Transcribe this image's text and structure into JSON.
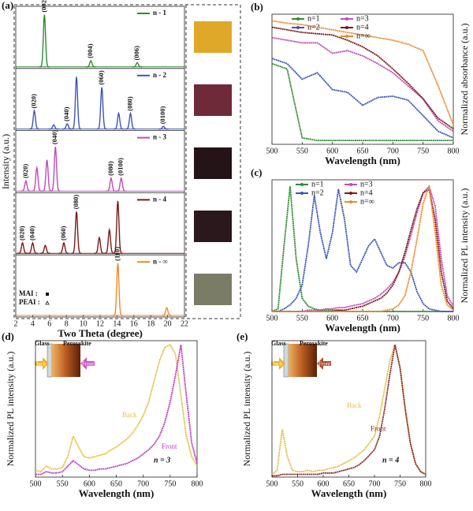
{
  "chart_data": [
    {
      "type": "peaks",
      "panel": "(a)",
      "xlabel": "Two Theta (degree)",
      "ylabel": "Intensity (a.u.)",
      "xlim": [
        2,
        22
      ],
      "xticks": [
        2,
        4,
        6,
        8,
        10,
        12,
        14,
        16,
        18,
        20,
        22
      ],
      "ylim": [
        0,
        1.1
      ],
      "marker_legend": [
        "MAI :",
        "PEAI :"
      ],
      "subplots": [
        {
          "name": "n - 1",
          "color": "#2e8b2e",
          "peaks": [
            {
              "x": 5.4,
              "height": 1.0,
              "label": "(002)"
            },
            {
              "x": 10.9,
              "height": 0.12,
              "label": "(004)"
            },
            {
              "x": 16.4,
              "height": 0.08,
              "label": "(006)"
            }
          ]
        },
        {
          "name": "n - 2",
          "color": "#3a55b8",
          "peaks": [
            {
              "x": 4.2,
              "height": 0.35,
              "label": "(020)"
            },
            {
              "x": 6.5,
              "height": 0.08
            },
            {
              "x": 8.1,
              "height": 0.1,
              "label": "(040)"
            },
            {
              "x": 9.2,
              "height": 1.0
            },
            {
              "x": 12.2,
              "height": 0.8,
              "label": "(060)"
            },
            {
              "x": 14.2,
              "height": 0.3
            },
            {
              "x": 15.6,
              "height": 0.3,
              "label": "(080)"
            },
            {
              "x": 19.5,
              "height": 0.05,
              "label": "(0100)"
            }
          ]
        },
        {
          "name": "n - 3",
          "color": "#c04bb8",
          "peaks": [
            {
              "x": 3.2,
              "height": 0.2,
              "label": "(020)"
            },
            {
              "x": 4.5,
              "height": 0.45
            },
            {
              "x": 5.7,
              "height": 0.6
            },
            {
              "x": 6.7,
              "height": 0.85,
              "label": "(040)"
            },
            {
              "x": 13.3,
              "height": 0.25,
              "label": "(080)"
            },
            {
              "x": 14.5,
              "height": 0.25,
              "label": "(0100)"
            }
          ]
        },
        {
          "name": "n - 4",
          "color": "#7a1a1a",
          "peaks": [
            {
              "x": 2.8,
              "height": 0.2,
              "label": "(020)"
            },
            {
              "x": 4.0,
              "height": 0.2,
              "label": "(040)"
            },
            {
              "x": 5.5,
              "height": 0.15
            },
            {
              "x": 7.7,
              "height": 0.2,
              "label": "(060)"
            },
            {
              "x": 9.2,
              "height": 0.8,
              "label": "(080)"
            },
            {
              "x": 11.9,
              "height": 0.3
            },
            {
              "x": 13.1,
              "height": 0.45
            },
            {
              "x": 14.1,
              "height": 1.0
            }
          ]
        },
        {
          "name": "n - ∞",
          "color": "#f08a2a",
          "peaks": [
            {
              "x": 14.1,
              "height": 1.0,
              "label": "(110)"
            },
            {
              "x": 19.9,
              "height": 0.15
            }
          ]
        }
      ]
    },
    {
      "type": "line",
      "panel": "(b)",
      "xlabel": "Wavelength (nm)",
      "ylabel": "Normalized absorbance (a.u.)",
      "xlim": [
        500,
        800
      ],
      "xticks": [
        500,
        550,
        600,
        650,
        700,
        750,
        800
      ],
      "ylim": [
        0,
        1
      ],
      "x": [
        500,
        525,
        550,
        575,
        600,
        625,
        650,
        675,
        700,
        725,
        750,
        775,
        800
      ],
      "series": [
        {
          "name": "n=1",
          "color": "#2e8b2e",
          "values": [
            0.62,
            0.58,
            0.05,
            0.03,
            0.03,
            0.03,
            0.03,
            0.03,
            0.03,
            0.03,
            0.03,
            0.03,
            0.03
          ]
        },
        {
          "name": "n=2",
          "color": "#3a55b8",
          "values": [
            0.66,
            0.62,
            0.5,
            0.55,
            0.42,
            0.4,
            0.3,
            0.36,
            0.37,
            0.34,
            0.22,
            0.1,
            0.05
          ]
        },
        {
          "name": "n=3",
          "color": "#c04bb8",
          "values": [
            0.82,
            0.8,
            0.78,
            0.78,
            0.7,
            0.72,
            0.68,
            0.62,
            0.55,
            0.45,
            0.35,
            0.18,
            0.1
          ]
        },
        {
          "name": "n=4",
          "color": "#7a1a1a",
          "values": [
            0.9,
            0.88,
            0.86,
            0.85,
            0.84,
            0.8,
            0.75,
            0.68,
            0.58,
            0.47,
            0.35,
            0.2,
            0.12
          ]
        },
        {
          "name": "n=∞",
          "color": "#f08a2a",
          "values": [
            0.95,
            0.93,
            0.92,
            0.9,
            0.88,
            0.86,
            0.84,
            0.82,
            0.8,
            0.77,
            0.72,
            0.45,
            0.15
          ]
        }
      ]
    },
    {
      "type": "line",
      "panel": "(c)",
      "xlabel": "Wavelength (nm)",
      "ylabel": "Normalized PL intensity (a.u.)",
      "xlim": [
        500,
        800
      ],
      "xticks": [
        500,
        550,
        600,
        650,
        700,
        750,
        800
      ],
      "ylim": [
        0,
        1
      ],
      "x": [
        500,
        510,
        520,
        530,
        540,
        550,
        560,
        570,
        580,
        590,
        600,
        610,
        620,
        630,
        640,
        650,
        660,
        670,
        680,
        690,
        700,
        710,
        720,
        730,
        740,
        750,
        760,
        770,
        780,
        790,
        800
      ],
      "series": [
        {
          "name": "n=1",
          "color": "#2e8b2e",
          "values": [
            0,
            0.02,
            0.5,
            0.95,
            0.4,
            0.1,
            0.04,
            0.02,
            0.01,
            0.01,
            0.01,
            0.01,
            0,
            0,
            0,
            0,
            0,
            0,
            0,
            0,
            0,
            0,
            0,
            0,
            0,
            0,
            0,
            0,
            0,
            0,
            0
          ]
        },
        {
          "name": "n=2",
          "color": "#3a55b8",
          "values": [
            0,
            0,
            0.02,
            0.05,
            0.1,
            0.2,
            0.5,
            0.88,
            0.6,
            0.4,
            0.6,
            0.93,
            0.7,
            0.35,
            0.3,
            0.4,
            0.5,
            0.55,
            0.45,
            0.35,
            0.33,
            0.37,
            0.37,
            0.3,
            0.15,
            0.06,
            0.02,
            0.01,
            0,
            0,
            0
          ]
        },
        {
          "name": "n=3",
          "color": "#c04bb8",
          "values": [
            0,
            0,
            0,
            0,
            0,
            0,
            0.01,
            0.01,
            0.01,
            0.02,
            0.02,
            0.03,
            0.03,
            0.04,
            0.05,
            0.06,
            0.08,
            0.1,
            0.13,
            0.17,
            0.22,
            0.3,
            0.42,
            0.58,
            0.75,
            0.9,
            0.95,
            0.8,
            0.4,
            0.12,
            0.04
          ]
        },
        {
          "name": "n=4",
          "color": "#7a1a1a",
          "values": [
            0,
            0,
            0,
            0,
            0,
            0,
            0,
            0,
            0,
            0,
            0,
            0.01,
            0.01,
            0.02,
            0.03,
            0.04,
            0.06,
            0.08,
            0.1,
            0.14,
            0.2,
            0.3,
            0.45,
            0.62,
            0.78,
            0.9,
            0.93,
            0.7,
            0.3,
            0.08,
            0.02
          ]
        },
        {
          "name": "n=∞",
          "color": "#f08a2a",
          "values": [
            0,
            0,
            0,
            0,
            0,
            0,
            0,
            0,
            0,
            0,
            0,
            0,
            0,
            0,
            0,
            0,
            0,
            0,
            0,
            0.01,
            0.02,
            0.05,
            0.12,
            0.3,
            0.55,
            0.82,
            0.95,
            0.6,
            0.2,
            0.05,
            0.01
          ]
        }
      ]
    },
    {
      "type": "line",
      "panel": "(d)",
      "xlabel": "Wavelength (nm)",
      "ylabel": "Normalized PL intensity (a.u.)",
      "xlim": [
        500,
        800
      ],
      "xticks": [
        500,
        550,
        600,
        650,
        700,
        750,
        800
      ],
      "ylim": [
        0,
        1
      ],
      "annotation": "n = 3",
      "inset": {
        "left": "Glass",
        "right": "Perovskite",
        "arrow_left": "Back",
        "arrow_right": "Front"
      },
      "x": [
        500,
        510,
        520,
        530,
        540,
        550,
        560,
        570,
        580,
        590,
        600,
        610,
        620,
        630,
        640,
        650,
        660,
        670,
        680,
        690,
        700,
        710,
        720,
        730,
        740,
        750,
        760,
        770,
        780,
        790,
        800
      ],
      "series": [
        {
          "name": "Back",
          "color": "#e8c040",
          "values": [
            0.05,
            0.04,
            0.08,
            0.06,
            0.06,
            0.07,
            0.15,
            0.3,
            0.22,
            0.15,
            0.14,
            0.15,
            0.16,
            0.17,
            0.2,
            0.22,
            0.25,
            0.28,
            0.32,
            0.38,
            0.45,
            0.55,
            0.7,
            0.85,
            0.95,
            0.97,
            0.9,
            0.6,
            0.3,
            0.15,
            0.08
          ]
        },
        {
          "name": "Front",
          "color": "#c040c0",
          "values": [
            0.02,
            0.02,
            0.04,
            0.03,
            0.03,
            0.04,
            0.08,
            0.12,
            0.09,
            0.06,
            0.05,
            0.05,
            0.06,
            0.06,
            0.07,
            0.08,
            0.09,
            0.1,
            0.12,
            0.14,
            0.17,
            0.2,
            0.24,
            0.3,
            0.4,
            0.55,
            0.75,
            0.97,
            0.6,
            0.25,
            0.1
          ]
        }
      ]
    },
    {
      "type": "line",
      "panel": "(e)",
      "xlabel": "Wavelength (nm)",
      "ylabel": "Normalized PL intensity (a.u.)",
      "xlim": [
        500,
        800
      ],
      "xticks": [
        500,
        550,
        600,
        650,
        700,
        750,
        800
      ],
      "ylim": [
        0,
        1
      ],
      "annotation": "n = 4",
      "inset": {
        "left": "Glass",
        "right": "Perovskite",
        "arrow_left": "Back",
        "arrow_right": "Front"
      },
      "x": [
        500,
        510,
        520,
        530,
        540,
        550,
        560,
        570,
        580,
        590,
        600,
        610,
        620,
        630,
        640,
        650,
        660,
        670,
        680,
        690,
        700,
        710,
        720,
        730,
        740,
        750,
        760,
        770,
        780,
        790,
        800
      ],
      "series": [
        {
          "name": "Back",
          "color": "#e8c040",
          "values": [
            0.02,
            0.05,
            0.35,
            0.15,
            0.05,
            0.04,
            0.04,
            0.05,
            0.04,
            0.05,
            0.05,
            0.06,
            0.07,
            0.08,
            0.1,
            0.12,
            0.14,
            0.17,
            0.2,
            0.25,
            0.3,
            0.45,
            0.65,
            0.85,
            0.97,
            0.8,
            0.5,
            0.25,
            0.1,
            0.04,
            0.02
          ]
        },
        {
          "name": "Front",
          "color": "#8b2a2a",
          "values": [
            0.01,
            0.01,
            0.02,
            0.02,
            0.02,
            0.02,
            0.02,
            0.02,
            0.02,
            0.02,
            0.03,
            0.03,
            0.03,
            0.04,
            0.05,
            0.06,
            0.07,
            0.09,
            0.12,
            0.16,
            0.2,
            0.3,
            0.5,
            0.75,
            0.97,
            0.8,
            0.5,
            0.25,
            0.1,
            0.04,
            0.02
          ]
        }
      ]
    }
  ]
}
